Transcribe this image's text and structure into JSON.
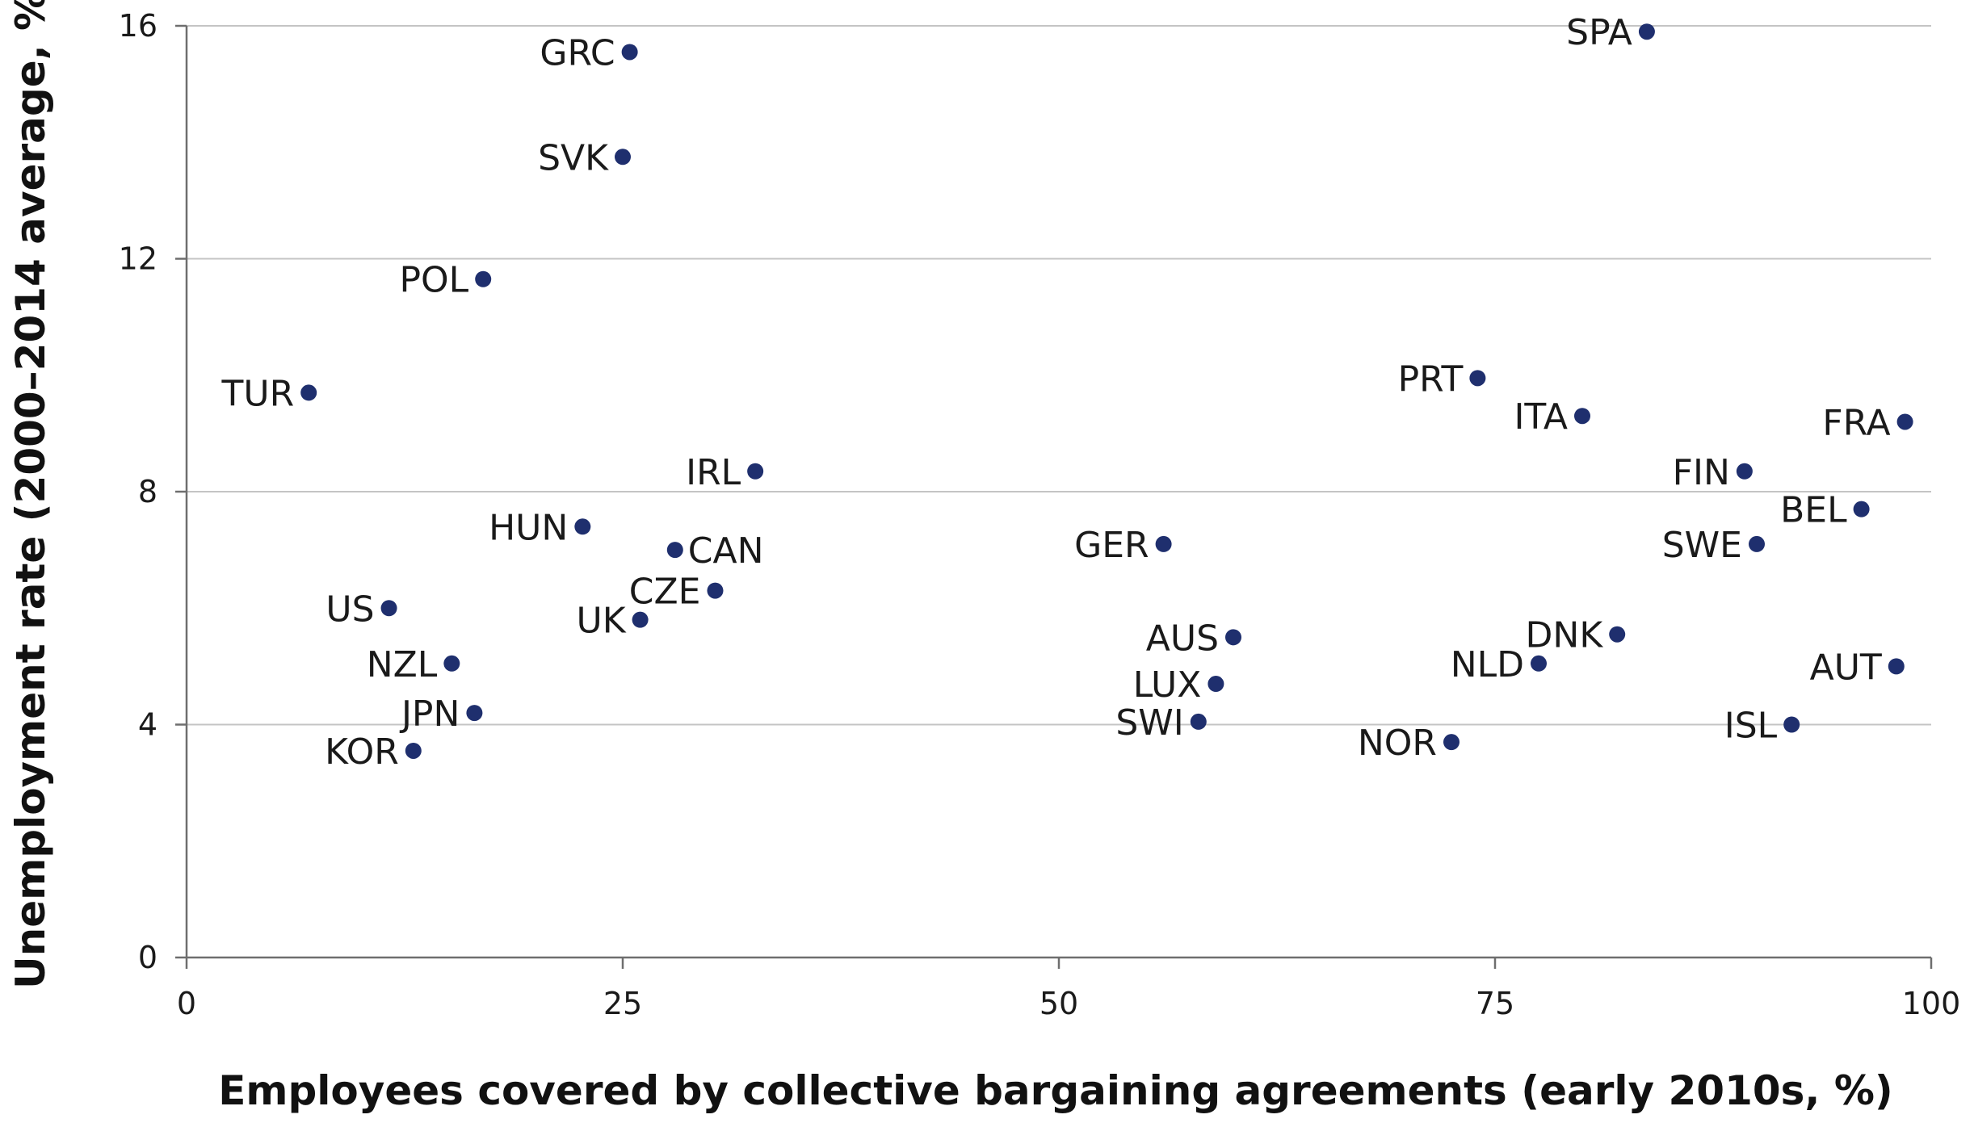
{
  "chart_data": {
    "type": "scatter",
    "xlabel": "Employees covered by collective bargaining agreements (early 2010s, %)",
    "ylabel": "Unemployment rate (2000–2014 average, %)",
    "xlim": [
      0,
      100
    ],
    "ylim": [
      0,
      16
    ],
    "x_ticks": [
      0,
      25,
      50,
      75,
      100
    ],
    "y_ticks": [
      0,
      4,
      8,
      12,
      16
    ],
    "grid": "horizontal",
    "legend": "none",
    "marker_color": "#1f2f6e",
    "points": [
      {
        "label": "SPA",
        "x": 83.7,
        "y": 15.9,
        "label_pos": "left"
      },
      {
        "label": "GRC",
        "x": 25.4,
        "y": 15.55,
        "label_pos": "left"
      },
      {
        "label": "SVK",
        "x": 25.0,
        "y": 13.75,
        "label_pos": "left"
      },
      {
        "label": "POL",
        "x": 17.0,
        "y": 11.65,
        "label_pos": "left"
      },
      {
        "label": "TUR",
        "x": 7.0,
        "y": 9.7,
        "label_pos": "left"
      },
      {
        "label": "PRT",
        "x": 74.0,
        "y": 9.95,
        "label_pos": "left"
      },
      {
        "label": "ITA",
        "x": 80.0,
        "y": 9.3,
        "label_pos": "left"
      },
      {
        "label": "FRA",
        "x": 98.5,
        "y": 9.2,
        "label_pos": "left"
      },
      {
        "label": "IRL",
        "x": 32.6,
        "y": 8.35,
        "label_pos": "left"
      },
      {
        "label": "FIN",
        "x": 89.3,
        "y": 8.35,
        "label_pos": "left"
      },
      {
        "label": "BEL",
        "x": 96.0,
        "y": 7.7,
        "label_pos": "left"
      },
      {
        "label": "HUN",
        "x": 22.7,
        "y": 7.4,
        "label_pos": "left"
      },
      {
        "label": "GER",
        "x": 56.0,
        "y": 7.1,
        "label_pos": "left"
      },
      {
        "label": "SWE",
        "x": 90.0,
        "y": 7.1,
        "label_pos": "left"
      },
      {
        "label": "CAN",
        "x": 28.0,
        "y": 7.0,
        "label_pos": "right"
      },
      {
        "label": "CZE",
        "x": 30.3,
        "y": 6.3,
        "label_pos": "left"
      },
      {
        "label": "US",
        "x": 11.6,
        "y": 6.0,
        "label_pos": "left"
      },
      {
        "label": "UK",
        "x": 26.0,
        "y": 5.8,
        "label_pos": "left"
      },
      {
        "label": "DNK",
        "x": 82.0,
        "y": 5.55,
        "label_pos": "left"
      },
      {
        "label": "AUS",
        "x": 60.0,
        "y": 5.5,
        "label_pos": "left"
      },
      {
        "label": "NZL",
        "x": 15.2,
        "y": 5.05,
        "label_pos": "left"
      },
      {
        "label": "NLD",
        "x": 77.5,
        "y": 5.05,
        "label_pos": "left"
      },
      {
        "label": "AUT",
        "x": 98.0,
        "y": 5.0,
        "label_pos": "left"
      },
      {
        "label": "LUX",
        "x": 59.0,
        "y": 4.7,
        "label_pos": "left"
      },
      {
        "label": "JPN",
        "x": 16.5,
        "y": 4.2,
        "label_pos": "left"
      },
      {
        "label": "SWI",
        "x": 58.0,
        "y": 4.05,
        "label_pos": "left"
      },
      {
        "label": "ISL",
        "x": 92.0,
        "y": 4.0,
        "label_pos": "left"
      },
      {
        "label": "NOR",
        "x": 72.5,
        "y": 3.7,
        "label_pos": "left"
      },
      {
        "label": "KOR",
        "x": 13.0,
        "y": 3.55,
        "label_pos": "left"
      }
    ]
  }
}
